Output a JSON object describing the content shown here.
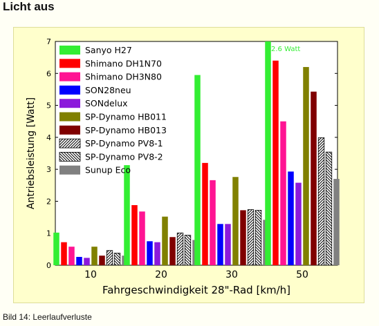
{
  "page": {
    "heading": "Licht aus",
    "caption": "Bild 14: Leerlaufverluste"
  },
  "chart_data": {
    "type": "bar",
    "title": "",
    "xlabel": "Fahrgeschwindigkeit 28\"-Rad [km/h]",
    "ylabel": "Antriebsleistung [Watt]",
    "ylim": [
      0,
      7
    ],
    "yticks": [
      "0",
      "1",
      "2",
      "3",
      "4",
      "5",
      "6",
      "7"
    ],
    "categories": [
      "10",
      "20",
      "30",
      "50"
    ],
    "grid": false,
    "legend_position": "top-left",
    "annotation": "12.6 Watt",
    "series": [
      {
        "name": "Sanyo H27",
        "color": "#33ee33",
        "pattern": "solid",
        "values": [
          1.02,
          3.13,
          5.95,
          7.0
        ]
      },
      {
        "name": "Shimano DH1N70",
        "color": "#ff0000",
        "pattern": "solid",
        "values": [
          0.72,
          1.88,
          3.2,
          6.4
        ]
      },
      {
        "name": "Shimano DH3N80",
        "color": "#ff1493",
        "pattern": "solid",
        "values": [
          0.58,
          1.68,
          2.66,
          4.5
        ]
      },
      {
        "name": "SON28neu",
        "color": "#0000ff",
        "pattern": "solid",
        "values": [
          0.26,
          0.75,
          1.29,
          2.93
        ]
      },
      {
        "name": "SONdelux",
        "color": "#8b1adb",
        "pattern": "solid",
        "values": [
          0.23,
          0.72,
          1.29,
          2.58
        ]
      },
      {
        "name": "SP-Dynamo HB011",
        "color": "#808000",
        "pattern": "solid",
        "values": [
          0.58,
          1.52,
          2.76,
          6.2
        ]
      },
      {
        "name": "SP-Dynamo HB013",
        "color": "#800000",
        "pattern": "solid",
        "values": [
          0.3,
          0.88,
          1.72,
          5.43
        ]
      },
      {
        "name": "SP-Dynamo PV8-1",
        "color": "#000000",
        "pattern": "hatch-right",
        "values": [
          0.46,
          1.01,
          1.74,
          3.99
        ]
      },
      {
        "name": "SP-Dynamo PV8-2",
        "color": "#000000",
        "pattern": "hatch-left",
        "values": [
          0.38,
          0.94,
          1.72,
          3.54
        ]
      },
      {
        "name": "Sunup Eco",
        "color": "#808080",
        "pattern": "solid",
        "values": [
          0.3,
          0.79,
          1.42,
          2.7
        ]
      }
    ]
  }
}
